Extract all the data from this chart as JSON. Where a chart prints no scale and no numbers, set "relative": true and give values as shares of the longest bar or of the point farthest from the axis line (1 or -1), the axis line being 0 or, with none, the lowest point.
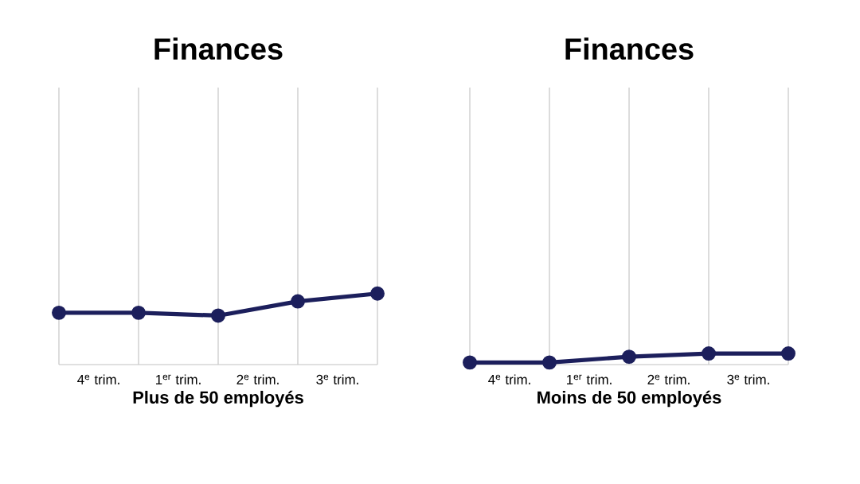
{
  "chart_data": [
    {
      "type": "line",
      "title": "Finances",
      "xlabel": "Plus de 50 employés",
      "relative": true,
      "categories": [
        null,
        null,
        null,
        null,
        null
      ],
      "annotations": [
        "4$^{e}$ trim.",
        "1$^{er}$ trim.",
        "2$^{e}$ trim.",
        "3$^{e}$ trim."
      ],
      "grid": "x",
      "marker": "circle",
      "line_style": "solid",
      "series": [
        {
          "color": "#1c1f5c",
          "values": [
            0.73,
            0.73,
            0.69,
            0.89,
            1
          ]
        }
      ]
    },
    {
      "type": "line",
      "title": "Finances",
      "xlabel": "Moins de 50 employés",
      "relative": true,
      "categories": [
        null,
        null,
        null,
        null,
        null
      ],
      "annotations": [
        "4$^{e}$ trim.",
        "1$^{er}$ trim.",
        "2$^{e}$ trim.",
        "3$^{e}$ trim."
      ],
      "grid": "x",
      "marker": "circle",
      "line_style": "solid",
      "series": [
        {
          "color": "#1c1f5c",
          "values": [
            0.19,
            0.19,
            0.71,
            1,
            1
          ]
        }
      ]
    }
  ]
}
